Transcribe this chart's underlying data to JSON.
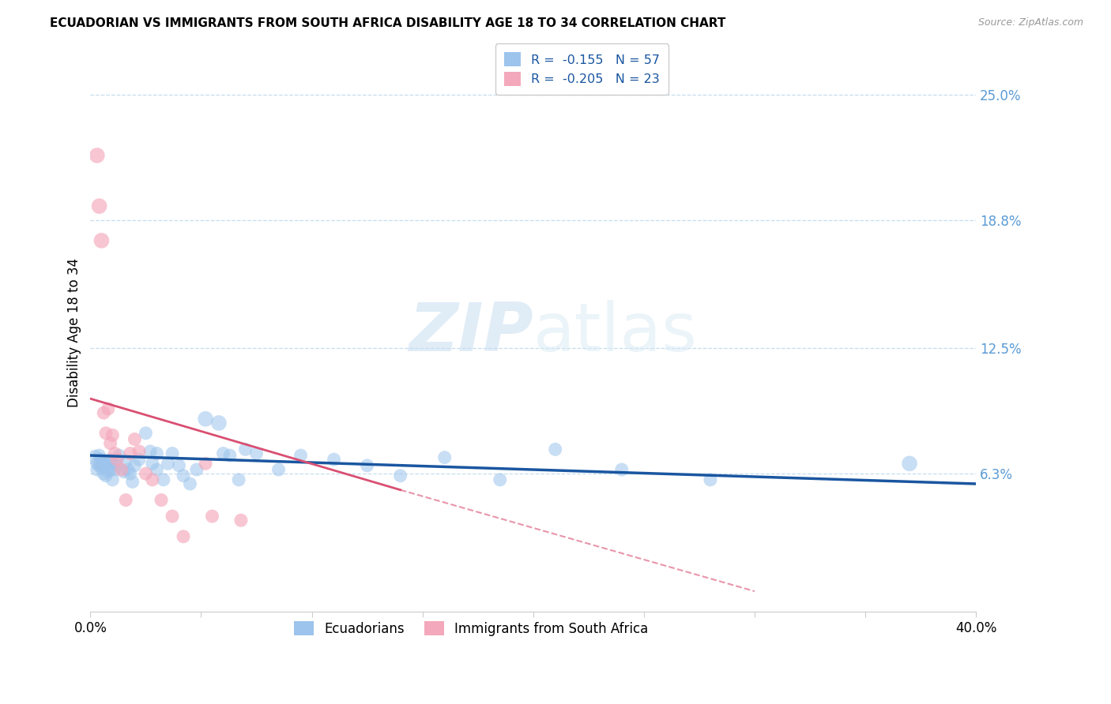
{
  "title": "ECUADORIAN VS IMMIGRANTS FROM SOUTH AFRICA DISABILITY AGE 18 TO 34 CORRELATION CHART",
  "source": "Source: ZipAtlas.com",
  "ylabel": "Disability Age 18 to 34",
  "xlim": [
    0.0,
    0.4
  ],
  "ylim": [
    -0.005,
    0.27
  ],
  "xticks": [
    0.0,
    0.05,
    0.1,
    0.15,
    0.2,
    0.25,
    0.3,
    0.35,
    0.4
  ],
  "xticklabels": [
    "0.0%",
    "",
    "",
    "",
    "",
    "",
    "",
    "",
    "40.0%"
  ],
  "ytick_positions": [
    0.063,
    0.125,
    0.188,
    0.25
  ],
  "ytick_labels": [
    "6.3%",
    "12.5%",
    "18.8%",
    "25.0%"
  ],
  "legend_label1": "R =  -0.155   N = 57",
  "legend_label2": "R =  -0.205   N = 23",
  "legend_label_bottom1": "Ecuadorians",
  "legend_label_bottom2": "Immigrants from South Africa",
  "color_blue": "#9CC4EC",
  "color_pink": "#F4A8BB",
  "line_color_blue": "#1A56A0",
  "line_color_pink": "#D94F72",
  "watermark_zip": "ZIP",
  "watermark_atlas": "atlas",
  "blue_points": [
    [
      0.002,
      0.071
    ],
    [
      0.003,
      0.068
    ],
    [
      0.003,
      0.065
    ],
    [
      0.004,
      0.072
    ],
    [
      0.004,
      0.067
    ],
    [
      0.005,
      0.07
    ],
    [
      0.005,
      0.066
    ],
    [
      0.006,
      0.068
    ],
    [
      0.006,
      0.063
    ],
    [
      0.007,
      0.067
    ],
    [
      0.007,
      0.062
    ],
    [
      0.008,
      0.069
    ],
    [
      0.008,
      0.064
    ],
    [
      0.009,
      0.07
    ],
    [
      0.009,
      0.065
    ],
    [
      0.01,
      0.068
    ],
    [
      0.01,
      0.06
    ],
    [
      0.011,
      0.065
    ],
    [
      0.012,
      0.067
    ],
    [
      0.013,
      0.072
    ],
    [
      0.015,
      0.064
    ],
    [
      0.016,
      0.069
    ],
    [
      0.017,
      0.065
    ],
    [
      0.018,
      0.063
    ],
    [
      0.019,
      0.059
    ],
    [
      0.02,
      0.067
    ],
    [
      0.022,
      0.07
    ],
    [
      0.025,
      0.083
    ],
    [
      0.027,
      0.074
    ],
    [
      0.028,
      0.068
    ],
    [
      0.03,
      0.073
    ],
    [
      0.03,
      0.065
    ],
    [
      0.033,
      0.06
    ],
    [
      0.035,
      0.068
    ],
    [
      0.037,
      0.073
    ],
    [
      0.04,
      0.067
    ],
    [
      0.042,
      0.062
    ],
    [
      0.045,
      0.058
    ],
    [
      0.048,
      0.065
    ],
    [
      0.052,
      0.09
    ],
    [
      0.058,
      0.088
    ],
    [
      0.06,
      0.073
    ],
    [
      0.063,
      0.072
    ],
    [
      0.067,
      0.06
    ],
    [
      0.07,
      0.075
    ],
    [
      0.075,
      0.073
    ],
    [
      0.085,
      0.065
    ],
    [
      0.095,
      0.072
    ],
    [
      0.11,
      0.07
    ],
    [
      0.125,
      0.067
    ],
    [
      0.14,
      0.062
    ],
    [
      0.16,
      0.071
    ],
    [
      0.185,
      0.06
    ],
    [
      0.21,
      0.075
    ],
    [
      0.24,
      0.065
    ],
    [
      0.28,
      0.06
    ],
    [
      0.37,
      0.068
    ]
  ],
  "pink_points": [
    [
      0.003,
      0.22
    ],
    [
      0.004,
      0.195
    ],
    [
      0.005,
      0.178
    ],
    [
      0.006,
      0.093
    ],
    [
      0.007,
      0.083
    ],
    [
      0.008,
      0.095
    ],
    [
      0.009,
      0.078
    ],
    [
      0.01,
      0.082
    ],
    [
      0.011,
      0.073
    ],
    [
      0.012,
      0.07
    ],
    [
      0.014,
      0.065
    ],
    [
      0.016,
      0.05
    ],
    [
      0.018,
      0.073
    ],
    [
      0.02,
      0.08
    ],
    [
      0.022,
      0.074
    ],
    [
      0.025,
      0.063
    ],
    [
      0.028,
      0.06
    ],
    [
      0.032,
      0.05
    ],
    [
      0.037,
      0.042
    ],
    [
      0.042,
      0.032
    ],
    [
      0.052,
      0.068
    ],
    [
      0.055,
      0.042
    ],
    [
      0.068,
      0.04
    ]
  ],
  "blue_sizes_raw": [
    200,
    150,
    150,
    150,
    150,
    150,
    150,
    150,
    150,
    150,
    150,
    150,
    150,
    150,
    150,
    150,
    150,
    150,
    150,
    150,
    150,
    150,
    150,
    150,
    150,
    150,
    150,
    150,
    150,
    150,
    150,
    150,
    150,
    150,
    150,
    150,
    150,
    150,
    150,
    200,
    200,
    150,
    150,
    150,
    150,
    150,
    150,
    150,
    150,
    150,
    150,
    150,
    150,
    150,
    150,
    150,
    200
  ],
  "pink_sizes_raw": [
    200,
    200,
    200,
    150,
    150,
    150,
    150,
    150,
    150,
    150,
    150,
    150,
    150,
    150,
    150,
    150,
    150,
    150,
    150,
    150,
    150,
    150,
    150
  ],
  "blue_line_x": [
    0.0,
    0.4
  ],
  "blue_line_y": [
    0.072,
    0.058
  ],
  "pink_line_x": [
    0.0,
    0.14
  ],
  "pink_line_y": [
    0.1,
    0.055
  ]
}
